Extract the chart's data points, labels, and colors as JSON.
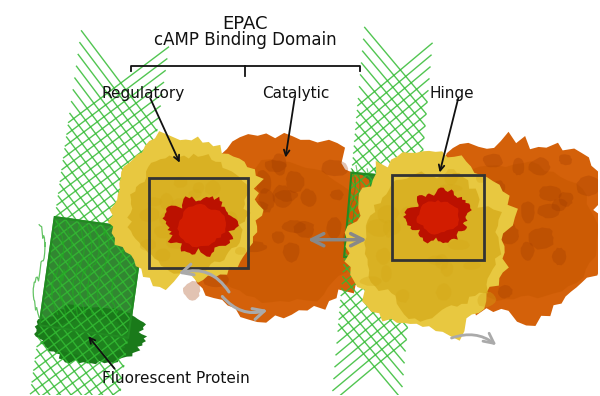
{
  "background_color": "#ffffff",
  "fig_width": 6.0,
  "fig_height": 3.96,
  "dpi": 100,
  "labels": {
    "epac": "EPAC",
    "camp": "cAMP Binding Domain",
    "regulatory": "Regulatory",
    "catalytic": "Catalytic",
    "hinge": "Hinge",
    "fluorescent": "Fluorescent Protein"
  },
  "colors": {
    "orange_main": "#D4610A",
    "orange_dark": "#A03A00",
    "orange_mid": "#C85800",
    "yellow_main": "#D4A817",
    "yellow_light": "#E8C840",
    "yellow_pale": "#F0D060",
    "red_camp": "#BB1100",
    "red_bright": "#DD2200",
    "green_dark": "#1A7A1A",
    "green_mid": "#228B22",
    "green_bright": "#33BB33",
    "green_wire": "#22AA22",
    "arrow_gray": "#AAAAAA",
    "arrow_gray_dark": "#888888",
    "text_black": "#111111",
    "box_color": "#444444"
  }
}
